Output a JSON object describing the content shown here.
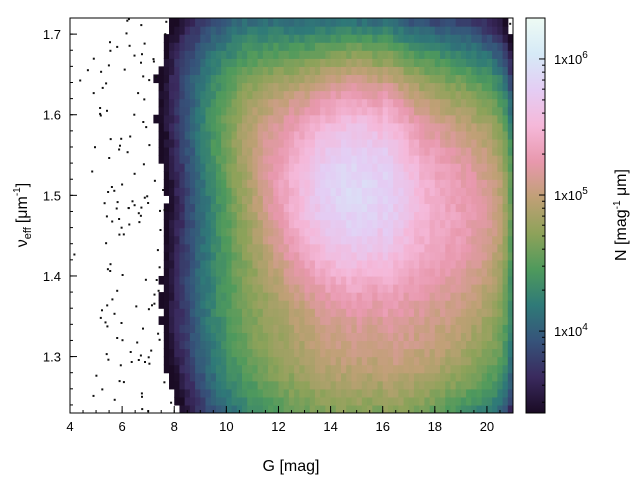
{
  "chart_data": {
    "type": "heatmap",
    "x": {
      "label_main": "G",
      "label_unit": "[mag]",
      "range": [
        4,
        21
      ],
      "major_ticks": [
        4,
        6,
        8,
        10,
        12,
        14,
        16,
        18,
        20
      ],
      "minor_step": 0.5
    },
    "y": {
      "label_symbol": "ν",
      "label_sub": "eff",
      "label_unit_pre": "[μm",
      "label_unit_sup": "-1",
      "label_unit_post": "]",
      "range": [
        1.23,
        1.72
      ],
      "major_ticks": [
        1.3,
        1.4,
        1.5,
        1.6,
        1.7
      ],
      "minor_step": 0.02
    },
    "colorbar": {
      "label_pre": "N [mag",
      "label_sup1": "-1",
      "label_mid": " μm]",
      "scale": "log",
      "range": [
        2500,
        2000000
      ],
      "ticks": [
        {
          "value": 10000,
          "base": "1x10",
          "exp": "4"
        },
        {
          "value": 100000,
          "base": "1x10",
          "exp": "5"
        },
        {
          "value": 1000000,
          "base": "1x10",
          "exp": "6"
        }
      ],
      "colormap": [
        "#1a0b24",
        "#3a2a5e",
        "#36537a",
        "#2f7a78",
        "#4f9a5c",
        "#8ea25a",
        "#c0a076",
        "#e898ad",
        "#f5b8d9",
        "#e4cdf4",
        "#d6eaf7",
        "#eefbf4"
      ]
    },
    "blobs": [
      {
        "x": 15.0,
        "y": 1.51,
        "sx": 1.3,
        "sy": 0.07,
        "amp": 5.9
      },
      {
        "x": 18.4,
        "y": 1.48,
        "sx": 1.8,
        "sy": 0.09,
        "amp": 5.3
      },
      {
        "x": 13.0,
        "y": 1.5,
        "sx": 1.2,
        "sy": 0.06,
        "amp": 5.2
      },
      {
        "x": 14.5,
        "y": 1.38,
        "sx": 2.2,
        "sy": 0.12,
        "amp": 5.0
      },
      {
        "x": 12.0,
        "y": 1.58,
        "sx": 1.3,
        "sy": 0.05,
        "amp": 4.9
      },
      {
        "x": 11.0,
        "y": 1.4,
        "sx": 1.5,
        "sy": 0.12,
        "amp": 4.4
      },
      {
        "x": 17.0,
        "y": 1.3,
        "sx": 3.0,
        "sy": 0.05,
        "amp": 4.6
      },
      {
        "x": 10.5,
        "y": 1.62,
        "sx": 1.5,
        "sy": 0.07,
        "amp": 4.2
      },
      {
        "x": 12.0,
        "y": 1.68,
        "sx": 2.0,
        "sy": 0.05,
        "amp": 4.0
      }
    ],
    "step_at_x": 16.0,
    "faint_limit_x": 20.9
  }
}
